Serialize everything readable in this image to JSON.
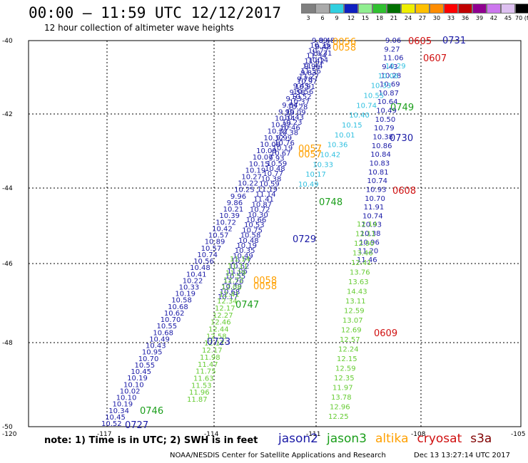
{
  "header": {
    "title": "00:00 — 11:59 UTC 12/12/2017",
    "subtitle": "12 hour collection of altimeter wave heights"
  },
  "color_legend": {
    "labels": [
      "3",
      "6",
      "9",
      "12",
      "15",
      "18",
      "21",
      "24",
      "27",
      "30",
      "33",
      "36",
      "39",
      "42",
      "45",
      "70 (ft)"
    ],
    "colors": [
      "#808080",
      "#aaaaaa",
      "#30d0e0",
      "#1020c0",
      "#90ee90",
      "#30c030",
      "#007000",
      "#eeee00",
      "#ffc000",
      "#ff8c00",
      "#ff0000",
      "#c00000",
      "#900090",
      "#cc77ee",
      "#ddc0f0",
      "#000000"
    ]
  },
  "axes": {
    "lat_labels": [
      "-40",
      "-42",
      "-44",
      "-46",
      "-48",
      "-50"
    ],
    "lon_labels": [
      "-120",
      "-117",
      "-114",
      "-111",
      "-108",
      "-105"
    ]
  },
  "satellites": {
    "jason2": {
      "label": "jason2",
      "color": "#1a1aa6"
    },
    "jason3": {
      "label": "jason3",
      "color": "#1a9e1a"
    },
    "altika": {
      "label": "altika",
      "color": "#ffa000"
    },
    "cryosat": {
      "label": "cryosat",
      "color": "#d01010"
    },
    "s3a": {
      "label": "s3a",
      "color": "#800000"
    }
  },
  "pass_times": [
    {
      "label": "0056",
      "sat": "altika"
    },
    {
      "label": "0058",
      "sat": "altika"
    },
    {
      "label": "0057",
      "sat": "altika"
    },
    {
      "label": "0057",
      "sat": "altika"
    },
    {
      "label": "0058",
      "sat": "altika"
    },
    {
      "label": "0058",
      "sat": "altika"
    },
    {
      "label": "0605",
      "sat": "cryosat"
    },
    {
      "label": "0607",
      "sat": "cryosat"
    },
    {
      "label": "0608",
      "sat": "cryosat"
    },
    {
      "label": "0609",
      "sat": "cryosat"
    },
    {
      "label": "0731",
      "sat": "jason2"
    },
    {
      "label": "0730",
      "sat": "jason2"
    },
    {
      "label": "0729",
      "sat": "jason2"
    },
    {
      "label": "0723",
      "sat": "jason2"
    },
    {
      "label": "0727",
      "sat": "jason2"
    },
    {
      "label": "0749",
      "sat": "jason3"
    },
    {
      "label": "0748",
      "sat": "jason3"
    },
    {
      "label": "0747",
      "sat": "jason3"
    },
    {
      "label": "0746",
      "sat": "jason3"
    }
  ],
  "readings": {
    "track_a": [
      "9.89",
      "10.35",
      "10.77",
      "11.34",
      "11.42",
      "11.44",
      "11.56",
      "11.27",
      "10.97",
      "10.91",
      "10.56",
      "10.52",
      "10.37",
      "10.28",
      "10.09",
      "10.43",
      "10.23",
      "10.46",
      "10.38",
      "9.99",
      "10.76",
      "10.19",
      "10.67",
      "9.93",
      "10.59",
      "10.48",
      "10.77",
      "10.38",
      "10.59",
      "11.19",
      "11.14",
      "11.41",
      "10.87",
      "10.72",
      "10.30",
      "10.66",
      "10.53",
      "10.75",
      "10.58",
      "10.48",
      "10.19",
      "10.35",
      "10.49",
      "10.77",
      "10.62",
      "11.06",
      "10.55",
      "11.20",
      "10.39",
      "10.68",
      "10.17"
    ],
    "track_b": [
      "9.48",
      "9.48",
      "10.31",
      "10.14",
      "9.95",
      "9.83",
      "9.78",
      "9.45",
      "9.58",
      "9.73",
      "9.84",
      "9.99",
      "10.14",
      "10.22",
      "10.32",
      "10.12",
      "10.08",
      "10.09",
      "10.07",
      "10.15",
      "10.19",
      "10.27",
      "10.22",
      "10.25",
      "9.96",
      "9.86",
      "10.21",
      "10.39",
      "10.72",
      "10.42",
      "10.57",
      "10.89",
      "10.57",
      "10.74",
      "10.56",
      "10.48",
      "10.41",
      "10.22",
      "10.33",
      "10.19",
      "10.58",
      "10.68",
      "10.62",
      "10.70",
      "10.55",
      "10.68",
      "10.49",
      "10.43",
      "10.95",
      "10.70",
      "10.55",
      "10.45",
      "10.19",
      "10.10",
      "10.02",
      "10.10",
      "10.19",
      "10.34",
      "10.45",
      "10.52"
    ],
    "track_c": [
      "9.06",
      "9.27",
      "11.06",
      "9.43",
      "10.28",
      "10.69",
      "10.87",
      "10.64",
      "10.49",
      "10.50",
      "10.79",
      "10.38",
      "10.86",
      "10.84",
      "10.83",
      "10.81",
      "10.74",
      "10.93",
      "10.70",
      "11.91",
      "10.74",
      "10.93",
      "10.38",
      "10.96",
      "11.20",
      "11.46"
    ],
    "track_d": [
      "12.14",
      "12.11",
      "12.90",
      "13.46",
      "12.41",
      "13.76",
      "13.63",
      "14.43",
      "13.11",
      "12.59",
      "13.07",
      "12.69",
      "12.57",
      "12.24",
      "12.15",
      "12.59",
      "12.35",
      "11.97",
      "13.78",
      "12.96",
      "12.25"
    ],
    "track_e": [
      "11.87",
      "11.96",
      "11.53",
      "11.63",
      "11.75",
      "11.47",
      "11.98",
      "12.17",
      "12.17",
      "12.58",
      "12.44",
      "12.46",
      "12.27",
      "12.17",
      "12.34",
      "12.41",
      "12.08",
      "12.72",
      "11.29",
      "11.11",
      "11.14"
    ],
    "track_f": [
      "10.29",
      "10.06",
      "10.33",
      "10.55",
      "10.74",
      "10.40",
      "10.15",
      "10.01",
      "10.36",
      "10.42",
      "10.33",
      "10.17",
      "10.49"
    ]
  },
  "note": "note:  1) Time is in UTC;  2) SWH is in feet",
  "footer": {
    "left": "NOAA/NESDIS Center for Satellite Applications and Research",
    "right": "Dec 13 13:27:14 UTC 2017"
  }
}
